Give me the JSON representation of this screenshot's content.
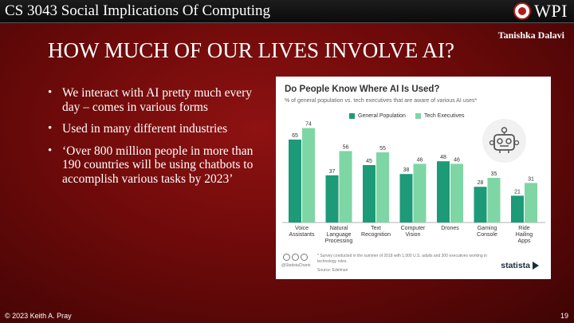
{
  "header": {
    "course_title": "CS 3043 Social Implications Of Computing",
    "logo_text": "WPI"
  },
  "presenter": "Tanishka Dalavi",
  "slide_title": "HOW MUCH OF OUR LIVES INVOLVE AI?",
  "bullets": [
    "We interact with AI pretty much every day – comes in various forms",
    "Used in many different industries",
    "‘Over 800 million people in more than 190 countries will be using chatbots to accomplish various tasks by 2023’"
  ],
  "chart_card": {
    "note": "* Survey conducted in the summer of 2018 with 1,000 U.S. adults and 300 executives working in technology roles.",
    "source": "Source: Edelman",
    "handle": "@StatistaCharts",
    "brand": "statista"
  },
  "colors": {
    "general": "#1d9a78",
    "tech": "#7ed6a4",
    "slide_bg": "#7a0c0c"
  },
  "chart_data": {
    "type": "bar",
    "title": "Do People Know Where AI Is Used?",
    "subtitle": "% of general population vs. tech executives that are aware of various AI uses*",
    "categories": [
      [
        "Voice",
        "Assistants"
      ],
      [
        "Natural",
        "Language",
        "Processing"
      ],
      [
        "Text",
        "Recognition"
      ],
      [
        "Computer",
        "Vision"
      ],
      [
        "Drones"
      ],
      [
        "Gaming",
        "Console"
      ],
      [
        "Ride",
        "Hailing",
        "Apps"
      ]
    ],
    "series": [
      {
        "name": "General Population",
        "values": [
          65,
          37,
          45,
          38,
          48,
          28,
          21
        ]
      },
      {
        "name": "Tech Executives",
        "values": [
          74,
          56,
          55,
          46,
          46,
          35,
          31
        ]
      }
    ],
    "ylim": [
      0,
      80
    ],
    "grid": false,
    "legend_position": "top"
  },
  "footer": {
    "copyright": "© 2023 Keith A. Pray",
    "page_number": "19"
  }
}
